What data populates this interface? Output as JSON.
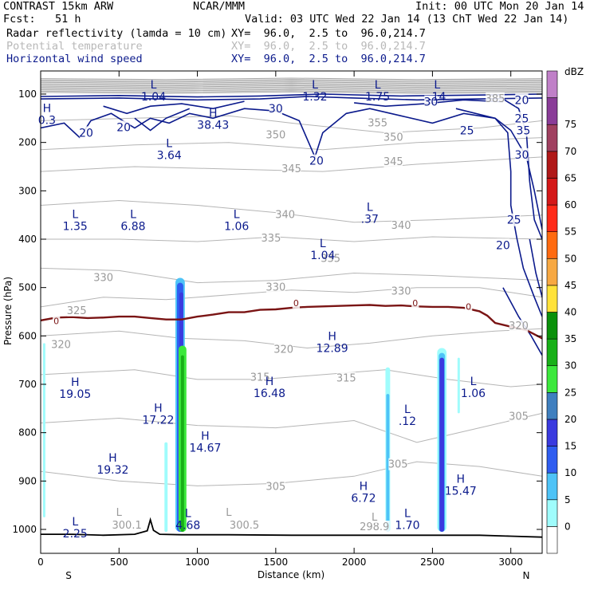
{
  "header": {
    "model": "CONTRAST 15km ARW",
    "center": "NCAR/MMM",
    "init": "Init: 00 UTC Mon 20 Jan 14",
    "fcst": "Fcst:   51 h",
    "valid": "Valid: 03 UTC Wed 22 Jan 14 (13 ChT Wed 22 Jan 14)",
    "fields": [
      {
        "name": "Radar reflectivity (lamda = 10 cm)",
        "xy": "XY=  96.0,  2.5 to  96.0,214.7",
        "color": "#000000"
      },
      {
        "name": "Potential temperature",
        "xy": "XY=  96.0,  2.5 to  96.0,214.7",
        "color": "#b8b8b8"
      },
      {
        "name": "Horizontal wind speed",
        "xy": "XY=  96.0,  2.5 to  96.0,214.7",
        "color": "#0b1a8c"
      }
    ]
  },
  "chart_data": {
    "type": "cross-section",
    "xlabel": "Distance (km)",
    "ylabel": "Pressure (hPa)",
    "xlim": [
      0,
      3200
    ],
    "ylim": [
      1050,
      60
    ],
    "x_ticks": [
      0,
      500,
      1000,
      1500,
      2000,
      2500,
      3000
    ],
    "y_ticks": [
      100,
      200,
      300,
      400,
      500,
      600,
      700,
      800,
      900,
      1000
    ],
    "x_end_labels": [
      "S",
      "N"
    ],
    "colorbar": {
      "unit": "dBZ",
      "levels": [
        0,
        5,
        10,
        15,
        20,
        25,
        30,
        35,
        40,
        45,
        50,
        55,
        60,
        65,
        70,
        75
      ],
      "colors": [
        "#ffffff",
        "#9ffcfc",
        "#4ec3f7",
        "#2f5df0",
        "#3a3adf",
        "#3f7fbf",
        "#3ce83c",
        "#18b018",
        "#0a900a",
        "#ffe23a",
        "#f7a842",
        "#ff6a10",
        "#ff2a18",
        "#d41818",
        "#b01818",
        "#a04060",
        "#8a3c98",
        "#c080c8"
      ]
    },
    "theta_labels": [
      {
        "v": "385",
        "x": 2900,
        "p": 110
      },
      {
        "v": "355",
        "x": 2150,
        "p": 160
      },
      {
        "v": "350",
        "x": 1500,
        "p": 185
      },
      {
        "v": "350",
        "x": 2250,
        "p": 190
      },
      {
        "v": "345",
        "x": 1600,
        "p": 255
      },
      {
        "v": "345",
        "x": 2250,
        "p": 240
      },
      {
        "v": "340",
        "x": 1560,
        "p": 350
      },
      {
        "v": "340",
        "x": 2300,
        "p": 372
      },
      {
        "v": "335",
        "x": 1470,
        "p": 398
      },
      {
        "v": "335",
        "x": 1850,
        "p": 440
      },
      {
        "v": "330",
        "x": 400,
        "p": 480
      },
      {
        "v": "330",
        "x": 1500,
        "p": 500
      },
      {
        "v": "330",
        "x": 2300,
        "p": 508
      },
      {
        "v": "325",
        "x": 230,
        "p": 548
      },
      {
        "v": "320",
        "x": 130,
        "p": 618
      },
      {
        "v": "320",
        "x": 1550,
        "p": 628
      },
      {
        "v": "320",
        "x": 3050,
        "p": 580
      },
      {
        "v": "315",
        "x": 1400,
        "p": 686
      },
      {
        "v": "315",
        "x": 1950,
        "p": 688
      },
      {
        "v": "305",
        "x": 1500,
        "p": 912
      },
      {
        "v": "305",
        "x": 2280,
        "p": 866
      },
      {
        "v": "305",
        "x": 3050,
        "p": 767
      },
      {
        "v": "300.1",
        "x": 550,
        "p": 992
      },
      {
        "v": "300.5",
        "x": 1300,
        "p": 992
      },
      {
        "v": "298.9",
        "x": 2130,
        "p": 995
      },
      {
        "v": "L",
        "x": 500,
        "p": 965
      },
      {
        "v": "L",
        "x": 1200,
        "p": 965
      },
      {
        "v": "L",
        "x": 2130,
        "p": 975
      }
    ],
    "wind_labels": [
      {
        "v": "20",
        "x": 290,
        "p": 180
      },
      {
        "v": "20",
        "x": 530,
        "p": 168
      },
      {
        "v": "20",
        "x": 1760,
        "p": 238
      },
      {
        "v": "20",
        "x": 2950,
        "p": 412
      },
      {
        "v": "20",
        "x": 3070,
        "p": 112
      },
      {
        "v": "25",
        "x": 2720,
        "p": 175
      },
      {
        "v": "25",
        "x": 3020,
        "p": 360
      },
      {
        "v": "25",
        "x": 3070,
        "p": 150
      },
      {
        "v": "30",
        "x": 1500,
        "p": 130
      },
      {
        "v": "30",
        "x": 2490,
        "p": 116
      },
      {
        "v": "30",
        "x": 3070,
        "p": 225
      },
      {
        "v": "35",
        "x": 3080,
        "p": 175
      },
      {
        "v": "0",
        "x": 100,
        "p": 567
      },
      {
        "v": "0",
        "x": 1630,
        "p": 530
      },
      {
        "v": "0",
        "x": 2390,
        "p": 530
      },
      {
        "v": "0",
        "x": 2730,
        "p": 538
      }
    ],
    "extrema": [
      {
        "kind": "L",
        "value": "1.04",
        "x": 720,
        "p": 92
      },
      {
        "kind": "L",
        "value": "1.32",
        "x": 1750,
        "p": 92
      },
      {
        "kind": "L",
        "value": "1.75",
        "x": 2150,
        "p": 92
      },
      {
        "kind": "L",
        "value": ".14",
        "x": 2530,
        "p": 92
      },
      {
        "kind": "H",
        "value": "0.3",
        "x": 40,
        "p": 140
      },
      {
        "kind": "H",
        "value": "38.43",
        "x": 1100,
        "p": 150
      },
      {
        "kind": "L",
        "value": "3.64",
        "x": 820,
        "p": 213
      },
      {
        "kind": "L",
        "value": "1.35",
        "x": 220,
        "p": 360
      },
      {
        "kind": "L",
        "value": "6.88",
        "x": 590,
        "p": 360
      },
      {
        "kind": "L",
        "value": "1.06",
        "x": 1250,
        "p": 360
      },
      {
        "kind": "L",
        "value": ".37",
        "x": 2100,
        "p": 345
      },
      {
        "kind": "L",
        "value": "1.04",
        "x": 1800,
        "p": 420
      },
      {
        "kind": "H",
        "value": "12.89",
        "x": 1860,
        "p": 612
      },
      {
        "kind": "H",
        "value": "19.05",
        "x": 220,
        "p": 707
      },
      {
        "kind": "H",
        "value": "16.48",
        "x": 1460,
        "p": 705
      },
      {
        "kind": "L",
        "value": "1.06",
        "x": 2760,
        "p": 705
      },
      {
        "kind": "H",
        "value": "17.22",
        "x": 750,
        "p": 760
      },
      {
        "kind": "L",
        "value": ".12",
        "x": 2340,
        "p": 763
      },
      {
        "kind": "H",
        "value": "14.67",
        "x": 1050,
        "p": 818
      },
      {
        "kind": "H",
        "value": "19.32",
        "x": 460,
        "p": 863
      },
      {
        "kind": "H",
        "value": "6.72",
        "x": 2060,
        "p": 922
      },
      {
        "kind": "H",
        "value": "15.47",
        "x": 2680,
        "p": 907
      },
      {
        "kind": "L",
        "value": "4.68",
        "x": 940,
        "p": 978
      },
      {
        "kind": "L",
        "value": "1.70",
        "x": 2340,
        "p": 978
      },
      {
        "kind": "L",
        "value": "2.25",
        "x": 220,
        "p": 995
      }
    ],
    "freezing_level": [
      [
        0,
        568
      ],
      [
        100,
        562
      ],
      [
        200,
        561
      ],
      [
        300,
        563
      ],
      [
        400,
        562
      ],
      [
        500,
        560
      ],
      [
        600,
        560
      ],
      [
        700,
        563
      ],
      [
        800,
        566
      ],
      [
        900,
        566
      ],
      [
        1000,
        560
      ],
      [
        1100,
        556
      ],
      [
        1200,
        551
      ],
      [
        1300,
        551
      ],
      [
        1400,
        546
      ],
      [
        1500,
        545
      ],
      [
        1600,
        542
      ],
      [
        1700,
        540
      ],
      [
        1800,
        539
      ],
      [
        1900,
        538
      ],
      [
        2000,
        537
      ],
      [
        2100,
        536
      ],
      [
        2200,
        538
      ],
      [
        2300,
        537
      ],
      [
        2400,
        539
      ],
      [
        2500,
        540
      ],
      [
        2600,
        540
      ],
      [
        2700,
        542
      ],
      [
        2800,
        549
      ],
      [
        2850,
        558
      ],
      [
        2900,
        573
      ],
      [
        3000,
        581
      ],
      [
        3100,
        588
      ],
      [
        3200,
        605
      ]
    ],
    "surface": [
      [
        0,
        1010
      ],
      [
        200,
        1010
      ],
      [
        400,
        1012
      ],
      [
        600,
        1010
      ],
      [
        680,
        1003
      ],
      [
        700,
        980
      ],
      [
        720,
        1002
      ],
      [
        760,
        1010
      ],
      [
        900,
        1011
      ],
      [
        1200,
        1011
      ],
      [
        1600,
        1012
      ],
      [
        2000,
        1012
      ],
      [
        2400,
        1012
      ],
      [
        2800,
        1012
      ],
      [
        3000,
        1014
      ],
      [
        3200,
        1016
      ]
    ],
    "reflectivity_columns": [
      {
        "x0": 860,
        "x1": 920,
        "ptop": 480,
        "pbot": 1005,
        "color": "#4ec3f7"
      },
      {
        "x0": 870,
        "x1": 910,
        "ptop": 490,
        "pbot": 1005,
        "color": "#2f5df0"
      },
      {
        "x0": 885,
        "x1": 910,
        "ptop": 510,
        "pbot": 1005,
        "color": "#3a3adf"
      },
      {
        "x0": 880,
        "x1": 930,
        "ptop": 620,
        "pbot": 1005,
        "color": "#3ce83c"
      },
      {
        "x0": 895,
        "x1": 915,
        "ptop": 640,
        "pbot": 1005,
        "color": "#18b018"
      },
      {
        "x0": 2200,
        "x1": 2230,
        "ptop": 665,
        "pbot": 1005,
        "color": "#9ffcfc"
      },
      {
        "x0": 2205,
        "x1": 2225,
        "ptop": 720,
        "pbot": 1005,
        "color": "#4ec3f7"
      },
      {
        "x0": 2530,
        "x1": 2590,
        "ptop": 625,
        "pbot": 1005,
        "color": "#9ffcfc"
      },
      {
        "x0": 2540,
        "x1": 2580,
        "ptop": 635,
        "pbot": 1005,
        "color": "#4ec3f7"
      },
      {
        "x0": 2545,
        "x1": 2575,
        "ptop": 645,
        "pbot": 1005,
        "color": "#3a3adf"
      },
      {
        "x0": 2660,
        "x1": 2675,
        "ptop": 645,
        "pbot": 760,
        "color": "#9ffcfc"
      },
      {
        "x0": 790,
        "x1": 810,
        "ptop": 820,
        "pbot": 1005,
        "color": "#9ffcfc"
      },
      {
        "x0": 15,
        "x1": 30,
        "ptop": 615,
        "pbot": 975,
        "color": "#9ffcfc"
      }
    ]
  }
}
